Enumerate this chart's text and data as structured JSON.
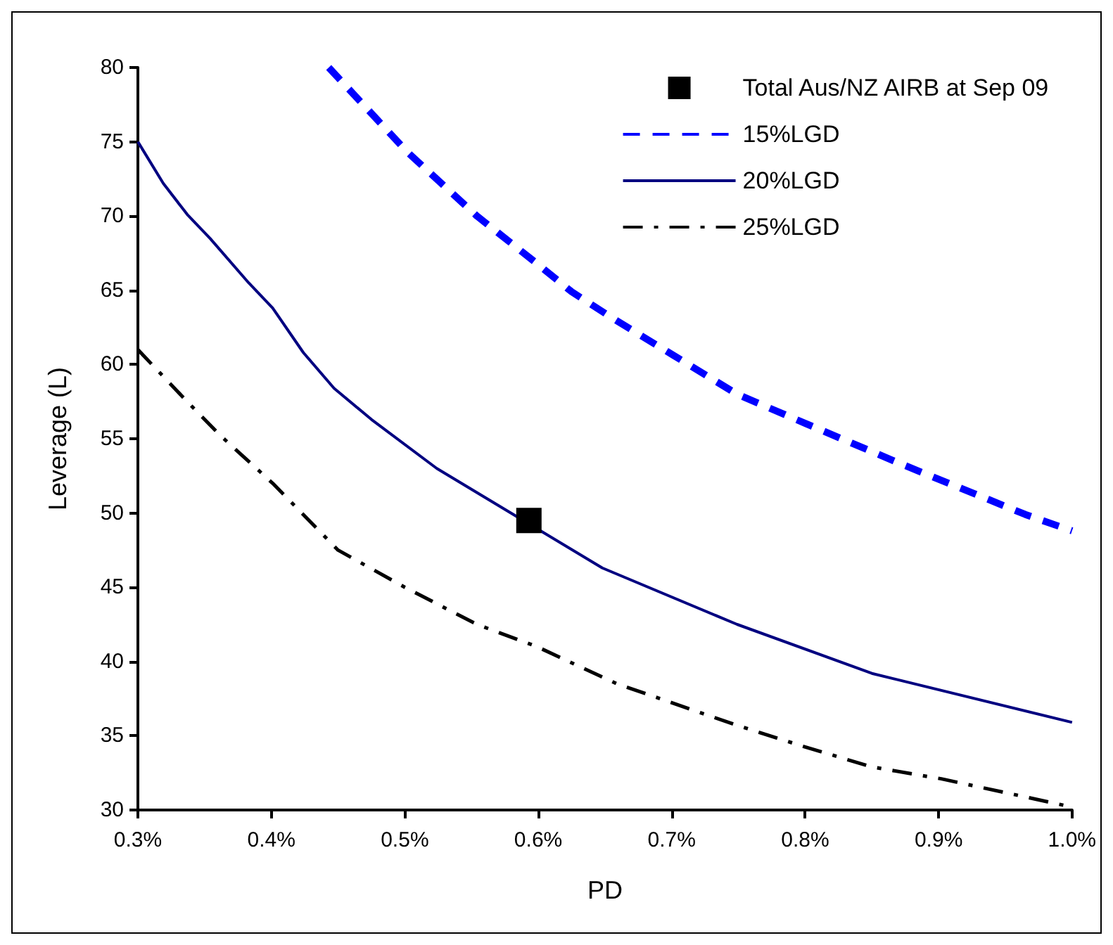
{
  "chart_data": {
    "type": "line",
    "xlabel": "PD",
    "ylabel": "Leverage (L)",
    "xlim": [
      0.3,
      1.0
    ],
    "xticks": [
      {
        "value": 0.3,
        "label": "0.3%"
      },
      {
        "value": 0.4,
        "label": "0.4%"
      },
      {
        "value": 0.5,
        "label": "0.5%"
      },
      {
        "value": 0.6,
        "label": "0.6%"
      },
      {
        "value": 0.7,
        "label": "0.7%"
      },
      {
        "value": 0.8,
        "label": "0.8%"
      },
      {
        "value": 0.9,
        "label": "0.9%"
      },
      {
        "value": 1.0,
        "label": "1.0%"
      }
    ],
    "ylim": [
      30,
      80
    ],
    "yticks": [
      30,
      35,
      40,
      45,
      50,
      55,
      60,
      65,
      70,
      75,
      80
    ],
    "grid": false,
    "legend": "top right",
    "series": [
      {
        "name": "Total Aus/NZ AIRB at Sep 09",
        "type": "scatter",
        "marker": "square",
        "color": "#000000",
        "x": [
          0.593
        ],
        "values": [
          49.5
        ]
      },
      {
        "name": "15%LGD",
        "color": "#0000ff",
        "line_style": "dashed",
        "x": [
          0.443,
          0.502,
          0.554,
          0.599,
          0.625,
          0.656,
          0.749,
          0.801,
          0.872,
          0.965,
          1.0
        ],
        "values": [
          80,
          74.3,
          70.0,
          66.8,
          64.9,
          63.1,
          58.0,
          56.0,
          53.3,
          49.9,
          48.8
        ]
      },
      {
        "name": "20%LGD",
        "color": "#000080",
        "line_style": "solid",
        "x": [
          0.3,
          0.319,
          0.337,
          0.354,
          0.383,
          0.401,
          0.424,
          0.447,
          0.475,
          0.524,
          0.648,
          0.749,
          0.85,
          1.0
        ],
        "values": [
          75.0,
          72.2,
          70.1,
          68.5,
          65.5,
          63.8,
          60.8,
          58.4,
          56.3,
          53.0,
          46.3,
          42.5,
          39.2,
          35.9
        ]
      },
      {
        "name": "25%LGD",
        "color": "#000000",
        "line_style": "dashdot",
        "x": [
          0.3,
          0.338,
          0.362,
          0.401,
          0.45,
          0.5,
          0.554,
          0.599,
          0.659,
          0.749,
          0.798,
          0.85,
          0.902,
          1.0
        ],
        "values": [
          61.0,
          57.4,
          55.2,
          52.0,
          47.5,
          45.0,
          42.5,
          41.0,
          38.5,
          35.7,
          34.3,
          32.9,
          32.1,
          30.2
        ]
      }
    ]
  }
}
